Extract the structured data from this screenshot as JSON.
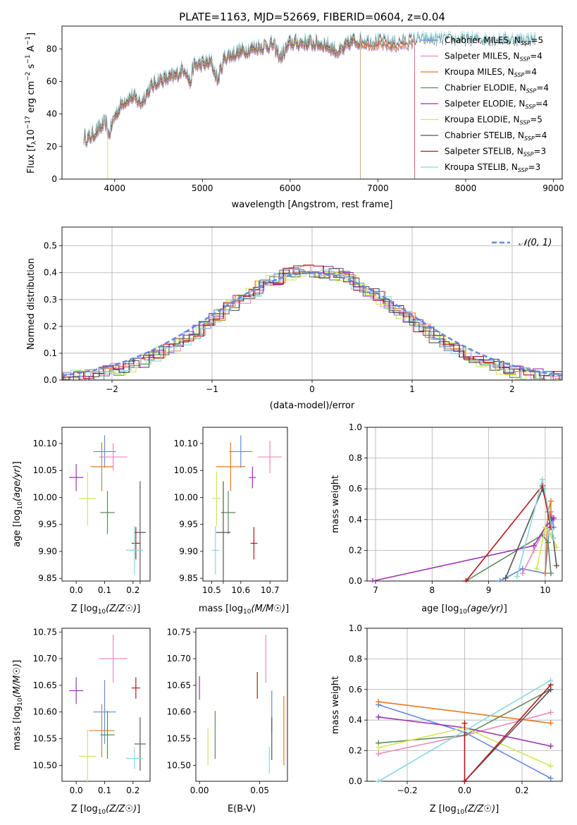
{
  "colors": {
    "Chabrier MILES": "#6289e0",
    "Salpeter MILES": "#e88bbd",
    "Kroupa MILES": "#e07b24",
    "Chabrier ELODIE": "#5e8a5e",
    "Salpeter ELODIE": "#9a35b3",
    "Kroupa ELODIE": "#d4e45a",
    "Chabrier STELIB": "#555555",
    "Salpeter STELIB": "#b01a1a",
    "Kroupa STELIB": "#8ad8dc"
  },
  "chart_data": [
    {
      "type": "line",
      "title": "PLATE=1163, MJD=52669, FIBERID=0604, z=0.04",
      "xlabel": "wavelength [Angstrom, rest frame]",
      "ylabel": "Flux [f_λ 10^-17 erg cm^-2 s^-1 A^-1]",
      "ylabel_parts": {
        "a": "Flux [f",
        "b": "λ",
        "c": "10",
        "d": "−17",
        "e": " erg cm",
        "f": "−2",
        "g": " s",
        "h": "−1",
        "i": " A",
        "j": "−1",
        "k": "]"
      },
      "xlim": [
        3400,
        9100
      ],
      "ylim": [
        0,
        94
      ],
      "xticks": [
        4000,
        5000,
        6000,
        7000,
        8000,
        9000
      ],
      "yticks": [
        0,
        20,
        40,
        60,
        80
      ],
      "spectrum_anchor_x": [
        3650,
        3700,
        3800,
        3900,
        3935,
        3970,
        4000,
        4100,
        4200,
        4300,
        4400,
        4500,
        4600,
        4700,
        4800,
        4860,
        4900,
        5000,
        5100,
        5175,
        5250,
        5400,
        5600,
        5800,
        5890,
        6000,
        6200,
        6400,
        6563,
        6700,
        6800,
        7000,
        7200,
        7400
      ],
      "spectrum_anchor_y": [
        25,
        24,
        29,
        34,
        26,
        33,
        38,
        47,
        50,
        46,
        55,
        60,
        61,
        63,
        68,
        58,
        69,
        70,
        71,
        60,
        74,
        77,
        80,
        82,
        74,
        83,
        83,
        82,
        77,
        84,
        84,
        83,
        82,
        84
      ],
      "series": [
        {
          "name": "Chabrier MILES",
          "nssp": "5",
          "xmax": 7400,
          "drop": null
        },
        {
          "name": "Salpeter MILES",
          "nssp": "4",
          "xmax": 7400,
          "drop": null
        },
        {
          "name": "Kroupa MILES",
          "nssp": "4",
          "xmax": 7400,
          "drop": null
        },
        {
          "name": "Chabrier ELODIE",
          "nssp": "4",
          "xmax": 6800,
          "drop": 6800
        },
        {
          "name": "Salpeter ELODIE",
          "nssp": "4",
          "xmax": 6800,
          "drop": 6800
        },
        {
          "name": "Kroupa ELODIE",
          "nssp": "5",
          "xmax": 6800,
          "drop": 6800
        },
        {
          "name": "Chabrier STELIB",
          "nssp": "4",
          "xmax": 8800,
          "drop": null
        },
        {
          "name": "Salpeter STELIB",
          "nssp": "3",
          "xmax": 7420,
          "drop": 7420
        },
        {
          "name": "Kroupa STELIB",
          "nssp": "3",
          "xmax": 8800,
          "drop": null
        }
      ],
      "legend_position": "upper-right",
      "grid": false
    },
    {
      "type": "histogram",
      "xlabel": "(data-model)/error",
      "ylabel": "Normed distribution",
      "xlim": [
        -2.5,
        2.5
      ],
      "ylim": [
        0,
        0.57
      ],
      "xticks": [
        -2,
        -1,
        0,
        1,
        2
      ],
      "xtick_labels": [
        "−2",
        "−1",
        "0",
        "1",
        "2"
      ],
      "yticks": [
        0.0,
        0.1,
        0.2,
        0.3,
        0.4,
        0.5
      ],
      "bin_width": 0.1,
      "grid": true,
      "reference_curve": {
        "name": "𝒩(0, 1)",
        "mu": 0,
        "sigma": 1
      },
      "hist_offsets": [
        0.02,
        -0.015,
        0.03,
        -0.025,
        0.01,
        0.04,
        -0.03,
        0.015,
        -0.01
      ],
      "legend_position": "upper-right"
    },
    {
      "type": "errorbar",
      "xlabel": "Z [log10(Z/Z☉)]",
      "ylabel": "age [log10(age/yr)]",
      "xlim": [
        -0.05,
        0.26
      ],
      "ylim": [
        9.845,
        10.13
      ],
      "xticks": [
        0.0,
        0.1,
        0.2
      ],
      "yticks": [
        9.85,
        9.9,
        9.95,
        10.0,
        10.05,
        10.1
      ],
      "points": [
        {
          "name": "Chabrier MILES",
          "x": 0.1,
          "xerr": 0.04,
          "y": 10.085,
          "yerr": 0.03
        },
        {
          "name": "Salpeter MILES",
          "x": 0.13,
          "xerr": 0.05,
          "y": 10.075,
          "yerr": 0.025
        },
        {
          "name": "Kroupa MILES",
          "x": 0.09,
          "xerr": 0.04,
          "y": 10.057,
          "yerr": 0.045
        },
        {
          "name": "Chabrier ELODIE",
          "x": 0.11,
          "xerr": 0.025,
          "y": 9.972,
          "yerr": 0.04
        },
        {
          "name": "Salpeter ELODIE",
          "x": 0.0,
          "xerr": 0.025,
          "y": 10.037,
          "yerr": 0.025
        },
        {
          "name": "Kroupa ELODIE",
          "x": 0.04,
          "xerr": 0.03,
          "y": 9.998,
          "yerr": 0.05
        },
        {
          "name": "Chabrier STELIB",
          "x": 0.225,
          "xerr": 0.02,
          "y": 9.935,
          "yerr": 0.095
        },
        {
          "name": "Salpeter STELIB",
          "x": 0.21,
          "xerr": 0.015,
          "y": 9.915,
          "yerr": 0.03
        },
        {
          "name": "Kroupa STELIB",
          "x": 0.205,
          "xerr": 0.03,
          "y": 9.902,
          "yerr": 0.045
        }
      ]
    },
    {
      "type": "errorbar",
      "xlabel": "mass [log10(M/M☉)]",
      "ylabel": "",
      "xlim": [
        10.47,
        10.76
      ],
      "ylim": [
        9.845,
        10.13
      ],
      "xticks": [
        10.5,
        10.6,
        10.7
      ],
      "yticks": [
        9.85,
        9.9,
        9.95,
        10.0,
        10.05,
        10.1
      ],
      "points": [
        {
          "name": "Chabrier MILES",
          "x": 10.6,
          "xerr": 0.04,
          "y": 10.085,
          "yerr": 0.03
        },
        {
          "name": "Salpeter MILES",
          "x": 10.7,
          "xerr": 0.04,
          "y": 10.075,
          "yerr": 0.03
        },
        {
          "name": "Kroupa MILES",
          "x": 10.565,
          "xerr": 0.05,
          "y": 10.057,
          "yerr": 0.045
        },
        {
          "name": "Chabrier ELODIE",
          "x": 10.557,
          "xerr": 0.025,
          "y": 9.972,
          "yerr": 0.04
        },
        {
          "name": "Salpeter ELODIE",
          "x": 10.64,
          "xerr": 0.012,
          "y": 10.037,
          "yerr": 0.02
        },
        {
          "name": "Kroupa ELODIE",
          "x": 10.517,
          "xerr": 0.015,
          "y": 9.998,
          "yerr": 0.05
        },
        {
          "name": "Chabrier STELIB",
          "x": 10.54,
          "xerr": 0.025,
          "y": 9.935,
          "yerr": 0.095
        },
        {
          "name": "Salpeter STELIB",
          "x": 10.645,
          "xerr": 0.012,
          "y": 9.915,
          "yerr": 0.03
        },
        {
          "name": "Kroupa STELIB",
          "x": 10.513,
          "xerr": 0.012,
          "y": 9.902,
          "yerr": 0.045
        }
      ]
    },
    {
      "type": "line",
      "xlabel": "age [log10(age/yr)]",
      "ylabel": "mass weight",
      "xlim": [
        6.85,
        10.3
      ],
      "ylim": [
        0,
        1
      ],
      "xticks": [
        7,
        8,
        9,
        10
      ],
      "yticks": [
        0.0,
        0.2,
        0.4,
        0.6,
        0.8,
        1.0
      ],
      "grid": true,
      "series": [
        {
          "name": "Chabrier MILES",
          "x": [
            9.2,
            9.6,
            10.0,
            10.1,
            10.15
          ],
          "y": [
            0.0,
            0.08,
            0.05,
            0.45,
            0.35
          ]
        },
        {
          "name": "Salpeter MILES",
          "x": [
            9.6,
            9.8,
            10.0,
            10.1,
            10.15
          ],
          "y": [
            0.05,
            0.2,
            0.35,
            0.45,
            0.4
          ]
        },
        {
          "name": "Kroupa MILES",
          "x": [
            10.0,
            10.05,
            10.1,
            10.1
          ],
          "y": [
            0.05,
            0.45,
            0.52,
            0.35
          ]
        },
        {
          "name": "Chabrier ELODIE",
          "x": [
            8.6,
            9.95,
            10.05,
            10.1
          ],
          "y": [
            0.0,
            0.3,
            0.25,
            0.05
          ]
        },
        {
          "name": "Salpeter ELODIE",
          "x": [
            6.95,
            9.8,
            10.0,
            10.15
          ],
          "y": [
            0.0,
            0.23,
            0.35,
            0.41
          ]
        },
        {
          "name": "Kroupa ELODIE",
          "x": [
            9.85,
            10.0,
            10.1,
            10.2
          ],
          "y": [
            0.08,
            0.35,
            0.3,
            0.22
          ]
        },
        {
          "name": "Chabrier STELIB",
          "x": [
            9.3,
            9.95,
            10.1,
            10.2
          ],
          "y": [
            0.02,
            0.6,
            0.4,
            0.1
          ]
        },
        {
          "name": "Salpeter STELIB",
          "x": [
            8.6,
            9.95,
            10.1
          ],
          "y": [
            0.0,
            0.62,
            0.35
          ]
        },
        {
          "name": "Kroupa STELIB",
          "x": [
            9.5,
            9.95,
            10.15
          ],
          "y": [
            0.03,
            0.66,
            0.28
          ]
        }
      ]
    },
    {
      "type": "errorbar",
      "xlabel": "Z [log10(Z/Z☉)]",
      "ylabel": "mass [log10(M/M☉)]",
      "xlim": [
        -0.05,
        0.26
      ],
      "ylim": [
        10.47,
        10.757
      ],
      "xticks": [
        0.0,
        0.1,
        0.2
      ],
      "yticks": [
        10.5,
        10.55,
        10.6,
        10.65,
        10.7,
        10.75
      ],
      "points": [
        {
          "name": "Chabrier MILES",
          "x": 0.1,
          "xerr": 0.04,
          "y": 10.6,
          "yerr": 0.06
        },
        {
          "name": "Salpeter MILES",
          "x": 0.13,
          "xerr": 0.05,
          "y": 10.7,
          "yerr": 0.045
        },
        {
          "name": "Kroupa MILES",
          "x": 0.09,
          "xerr": 0.045,
          "y": 10.565,
          "yerr": 0.05
        },
        {
          "name": "Chabrier ELODIE",
          "x": 0.11,
          "xerr": 0.025,
          "y": 10.557,
          "yerr": 0.045
        },
        {
          "name": "Salpeter ELODIE",
          "x": 0.0,
          "xerr": 0.025,
          "y": 10.64,
          "yerr": 0.025
        },
        {
          "name": "Kroupa ELODIE",
          "x": 0.04,
          "xerr": 0.03,
          "y": 10.517,
          "yerr": 0.05
        },
        {
          "name": "Chabrier STELIB",
          "x": 0.225,
          "xerr": 0.02,
          "y": 10.54,
          "yerr": 0.05
        },
        {
          "name": "Salpeter STELIB",
          "x": 0.21,
          "xerr": 0.015,
          "y": 10.645,
          "yerr": 0.02
        },
        {
          "name": "Kroupa STELIB",
          "x": 0.205,
          "xerr": 0.03,
          "y": 10.513,
          "yerr": 0.02
        }
      ]
    },
    {
      "type": "errorbar",
      "xlabel": "E(B-V)",
      "ylabel": "",
      "xlim": [
        -0.003,
        0.073
      ],
      "ylim": [
        10.47,
        10.757
      ],
      "xticks": [
        0.0,
        0.05
      ],
      "yticks": [
        10.5,
        10.55,
        10.6,
        10.65,
        10.7,
        10.75
      ],
      "points": [
        {
          "name": "Chabrier MILES",
          "x": 0.06,
          "xerr": 0,
          "y": 10.6,
          "yerr": 0.04
        },
        {
          "name": "Salpeter MILES",
          "x": 0.055,
          "xerr": 0,
          "y": 10.7,
          "yerr": 0.045
        },
        {
          "name": "Kroupa MILES",
          "x": 0.07,
          "xerr": 0,
          "y": 10.565,
          "yerr": 0.065
        },
        {
          "name": "Chabrier ELODIE",
          "x": 0.013,
          "xerr": 0,
          "y": 10.557,
          "yerr": 0.045
        },
        {
          "name": "Salpeter ELODIE",
          "x": 0.0,
          "xerr": 0,
          "y": 10.645,
          "yerr": 0.022
        },
        {
          "name": "Kroupa ELODIE",
          "x": 0.007,
          "xerr": 0,
          "y": 10.535,
          "yerr": 0.035
        },
        {
          "name": "Chabrier STELIB",
          "x": 0.06,
          "xerr": 0,
          "y": 10.55,
          "yerr": 0.04
        },
        {
          "name": "Salpeter STELIB",
          "x": 0.048,
          "xerr": 0,
          "y": 10.65,
          "yerr": 0.025
        },
        {
          "name": "Kroupa STELIB",
          "x": 0.058,
          "xerr": 0,
          "y": 10.51,
          "yerr": 0.025
        }
      ]
    },
    {
      "type": "line",
      "xlabel": "Z [log10(Z/Z☉)]",
      "ylabel": "mass weight",
      "xlim": [
        -0.34,
        0.34
      ],
      "ylim": [
        0,
        1
      ],
      "xticks": [
        -0.2,
        0.0,
        0.2
      ],
      "xtick_labels": [
        "−0.2",
        "0.0",
        "0.2"
      ],
      "yticks": [
        0.0,
        0.2,
        0.4,
        0.6,
        0.8,
        1.0
      ],
      "grid": true,
      "series": [
        {
          "name": "Chabrier MILES",
          "x": [
            -0.3,
            0.0,
            0.3
          ],
          "y": [
            0.5,
            0.32,
            0.02
          ]
        },
        {
          "name": "Salpeter MILES",
          "x": [
            -0.3,
            0.0,
            0.3
          ],
          "y": [
            0.18,
            0.3,
            0.45
          ]
        },
        {
          "name": "Kroupa MILES",
          "x": [
            -0.3,
            0.3
          ],
          "y": [
            0.52,
            0.38
          ]
        },
        {
          "name": "Chabrier ELODIE",
          "x": [
            -0.3,
            0.0,
            0.3
          ],
          "y": [
            0.25,
            0.3,
            0.6
          ]
        },
        {
          "name": "Salpeter ELODIE",
          "x": [
            -0.3,
            0.0,
            0.3
          ],
          "y": [
            0.42,
            0.35,
            0.23
          ]
        },
        {
          "name": "Kroupa ELODIE",
          "x": [
            -0.3,
            0.0,
            0.3
          ],
          "y": [
            0.22,
            0.35,
            0.1
          ]
        },
        {
          "name": "Chabrier STELIB",
          "x": [
            0.0,
            0.3
          ],
          "y": [
            0.0,
            0.6
          ]
        },
        {
          "name": "Salpeter STELIB",
          "x": [
            0.0,
            0.0,
            0.3
          ],
          "y": [
            0.38,
            0.0,
            0.63
          ]
        },
        {
          "name": "Kroupa STELIB",
          "x": [
            -0.3,
            0.3
          ],
          "y": [
            0.0,
            0.66
          ]
        }
      ]
    }
  ]
}
